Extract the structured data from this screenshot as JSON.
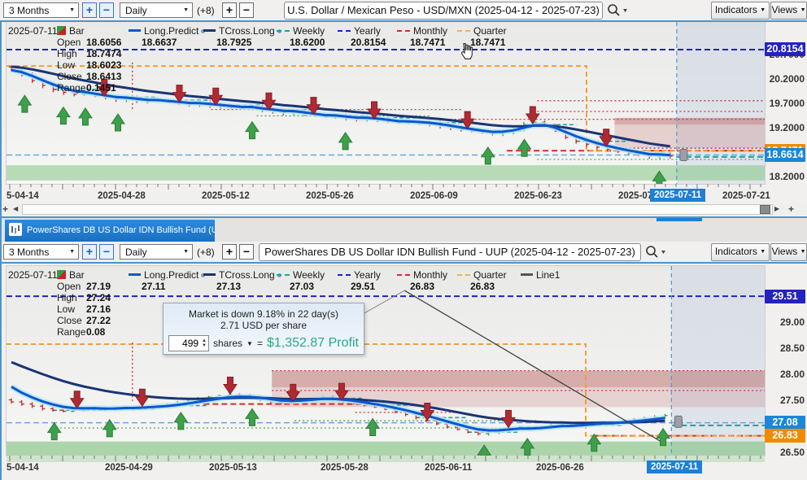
{
  "top_toolbar": {
    "range": "3 Months",
    "interval": "Daily",
    "plus8": "(+8)",
    "title": "U.S. Dollar / Mexican Peso - USD/MXN (2025-04-12 - 2025-07-23)",
    "indicators": "Indicators",
    "views": "Views"
  },
  "bottom_toolbar": {
    "range": "3 Months",
    "interval": "Daily",
    "plus8": "(+8)",
    "title": "PowerShares DB US Dollar IDN Bullish Fund - UUP (2025-04-12 - 2025-07-23)",
    "indicators": "Indicators",
    "views": "Views"
  },
  "tab": {
    "label": "PowerShares DB US Dollar IDN Bullish Fund (UUP)"
  },
  "top_panel": {
    "legend": {
      "date": "2025-07-11",
      "bar_label": "Bar",
      "items": [
        {
          "label": "Long.Predict",
          "value": "18.6637",
          "color": "#0b57d0",
          "style": "solid",
          "dot": true
        },
        {
          "label": "TCross.Long",
          "value": "18.7925",
          "color": "#1a3575",
          "style": "solid",
          "dot": true
        },
        {
          "label": "Weekly",
          "value": "18.6200",
          "color": "#1ba39c",
          "style": "dash",
          "dot": false
        },
        {
          "label": "Yearly",
          "value": "20.8154",
          "color": "#2222bb",
          "style": "dash",
          "dot": false
        },
        {
          "label": "Monthly",
          "value": "18.7471",
          "color": "#d82a2a",
          "style": "dash",
          "dot": false
        },
        {
          "label": "Quarter",
          "value": "18.7471",
          "color": "#e9b93c",
          "style": "dash",
          "dot": false
        }
      ],
      "ohlc": [
        {
          "k": "Open",
          "v": "18.6056"
        },
        {
          "k": "High",
          "v": "18.7474"
        },
        {
          "k": "Low",
          "v": "18.6023"
        },
        {
          "k": "Close",
          "v": "18.6413"
        },
        {
          "k": "Range",
          "v": "0.1451"
        }
      ]
    }
  },
  "bottom_panel": {
    "legend": {
      "date": "2025-07-11",
      "bar_label": "Bar",
      "items": [
        {
          "label": "Long.Predict",
          "value": "27.11",
          "color": "#0b57d0",
          "style": "solid",
          "dot": true
        },
        {
          "label": "TCross.Long",
          "value": "27.13",
          "color": "#1a3575",
          "style": "solid",
          "dot": true
        },
        {
          "label": "Weekly",
          "value": "27.03",
          "color": "#1ba39c",
          "style": "dash",
          "dot": false
        },
        {
          "label": "Yearly",
          "value": "29.51",
          "color": "#2222bb",
          "style": "dash",
          "dot": false
        },
        {
          "label": "Monthly",
          "value": "26.83",
          "color": "#d82a2a",
          "style": "dash",
          "dot": false
        },
        {
          "label": "Quarter",
          "value": "26.83",
          "color": "#e9b93c",
          "style": "dash",
          "dot": false
        },
        {
          "label": "Line1",
          "value": "",
          "color": "#555555",
          "style": "solid",
          "dot": false
        }
      ],
      "ohlc": [
        {
          "k": "Open",
          "v": "27.19"
        },
        {
          "k": "High",
          "v": "27.24"
        },
        {
          "k": "Low",
          "v": "27.16"
        },
        {
          "k": "Close",
          "v": "27.22"
        },
        {
          "k": "Range",
          "v": "0.08"
        }
      ]
    },
    "tooltip": {
      "line1": "Market is down 9.18% in 22 day(s)",
      "line2": "2.71 USD per share",
      "shares_value": "499",
      "shares_label": "shares",
      "equals": "=",
      "profit": "$1,352.87 Profit"
    }
  },
  "chart_data": [
    {
      "type": "ohlc",
      "symbol": "USD/MXN",
      "title": "U.S. Dollar / Mexican Peso - USD/MXN (2025-04-12 - 2025-07-23)",
      "y_range": [
        18.07,
        21.38
      ],
      "y_ticks": [
        {
          "t": "20.7000",
          "p": 20.7
        },
        {
          "t": "20.2000",
          "p": 20.2
        },
        {
          "t": "19.7000",
          "p": 19.7
        },
        {
          "t": "19.2000",
          "p": 19.2
        },
        {
          "t": "18.2000",
          "p": 18.2
        }
      ],
      "badges": [
        {
          "t": "20.8154",
          "p": 20.8154,
          "c": "#2323c0"
        },
        {
          "t": "18.7471",
          "p": 18.7471,
          "c": "#f08b00"
        },
        {
          "t": "18.6614",
          "p": 18.6614,
          "c": "#1a87d8"
        }
      ],
      "x_labels": [
        {
          "t": "5-04-14",
          "f": 0.005
        },
        {
          "t": "2025-04-28",
          "f": 0.157
        },
        {
          "t": "2025-05-12",
          "f": 0.294
        },
        {
          "t": "2025-05-26",
          "f": 0.431
        },
        {
          "t": "2025-06-09",
          "f": 0.569
        },
        {
          "t": "2025-06-23",
          "f": 0.706
        },
        {
          "t": "2025-07-07",
          "f": 0.843
        },
        {
          "t": "2025-07-21",
          "f": 0.981
        }
      ],
      "x_current": {
        "t": "2025-07-11",
        "f": 0.882
      },
      "current_frac": 0.884,
      "closes": [
        20.38,
        20.3,
        20.18,
        20.08,
        20.0,
        19.94,
        19.9,
        19.92,
        19.87,
        19.84,
        19.8,
        19.82,
        19.78,
        19.76,
        19.78,
        19.74,
        19.72,
        19.7,
        19.72,
        19.68,
        19.66,
        19.64,
        19.62,
        19.64,
        19.58,
        19.56,
        19.53,
        19.55,
        19.5,
        19.47,
        19.44,
        19.46,
        19.42,
        19.4,
        19.42,
        19.38,
        19.35,
        19.32,
        19.34,
        19.32,
        19.3,
        19.26,
        19.22,
        19.18,
        19.15,
        19.12,
        19.1,
        19.14,
        19.2,
        19.28,
        19.33,
        19.28,
        19.15,
        19.02,
        18.94,
        18.88,
        18.82,
        18.78,
        18.74,
        18.7,
        18.67,
        18.63,
        18.66,
        18.64
      ],
      "quarter_steps": [
        [
          0,
          20.48
        ],
        [
          0.765,
          20.48
        ],
        [
          0.765,
          18.747
        ],
        [
          1,
          18.747
        ]
      ],
      "h_lines": [
        {
          "p": 20.8154,
          "x1": 0,
          "x2": 1,
          "c": "#2222bb",
          "d": "dash",
          "w": 2
        },
        {
          "p": 18.6614,
          "x1": 0,
          "x2": 1,
          "c": "#66a8e0",
          "d": "dash",
          "w": 1.5
        },
        {
          "p": 18.747,
          "x1": 0.66,
          "x2": 1,
          "c": "#d82a2a",
          "d": "dash",
          "w": 2
        },
        {
          "p": 18.62,
          "x1": 0.884,
          "x2": 1,
          "c": "#1ba39c",
          "d": "dash",
          "w": 2
        },
        {
          "p": 19.77,
          "x1": 0.7,
          "x2": 1,
          "c": "#cc3344",
          "d": "dot",
          "w": 1.3
        },
        {
          "p": 19.55,
          "x1": 0.7,
          "x2": 1,
          "c": "#cc3344",
          "d": "dot",
          "w": 1.3
        },
        {
          "p": 19.39,
          "x1": 0.58,
          "x2": 1,
          "c": "#cc3344",
          "d": "dot",
          "w": 1.3
        },
        {
          "p": 19.59,
          "x1": 0.27,
          "x2": 0.6,
          "c": "#cc3344",
          "d": "dot",
          "w": 1.3
        },
        {
          "p": 19.46,
          "x1": 0.33,
          "x2": 0.56,
          "c": "#3d9e4a",
          "d": "dot",
          "w": 1.2
        },
        {
          "p": 18.57,
          "x1": 0.7,
          "x2": 1,
          "c": "#3d9e4a",
          "d": "dot",
          "w": 1.2
        },
        {
          "p": 18.8,
          "x1": 0.8,
          "x2": 1,
          "c": "#aa2233",
          "d": "dot",
          "w": 1.3
        }
      ],
      "v_lines": [
        {
          "x": 0.166,
          "p1": 20.55,
          "p2": 19.55,
          "c": "#e03030"
        }
      ],
      "zones": [
        {
          "x1": 0.802,
          "x2": 1,
          "p1": 19.42,
          "p2": 19.28,
          "c": "#b85c5c",
          "a": 0.45
        },
        {
          "x1": 0.802,
          "x2": 1,
          "p1": 19.28,
          "p2": 18.8,
          "c": "#c98080",
          "a": 0.3
        },
        {
          "x1": 0,
          "x2": 1,
          "p1": 18.45,
          "p2": 18.14,
          "c": "#8cc98c",
          "a": 0.6
        }
      ],
      "arrows": {
        "up": [
          0.024,
          0.075,
          0.104,
          0.147,
          0.324,
          0.447,
          0.635,
          0.683,
          0.861
        ],
        "down": [
          0.129,
          0.228,
          0.276,
          0.346,
          0.405,
          0.485,
          0.608,
          0.694,
          0.791
        ]
      },
      "ma": {
        "p_alpha": 0.45,
        "p_off": 0.03,
        "t_alpha": 0.13,
        "t_off": 0.1
      },
      "bar_amp": 0.05,
      "u_off": 0.3,
      "d_off": 0.02,
      "handle_p": 18.66
    },
    {
      "type": "ohlc",
      "symbol": "UUP",
      "title": "PowerShares DB US Dollar IDN Bullish Fund - UUP (2025-04-12 - 2025-07-23)",
      "y_range": [
        26.45,
        30.09
      ],
      "y_ticks": [
        {
          "t": "29.00",
          "p": 29.0
        },
        {
          "t": "28.50",
          "p": 28.5
        },
        {
          "t": "28.00",
          "p": 28.0
        },
        {
          "t": "27.50",
          "p": 27.5
        },
        {
          "t": "26.50",
          "p": 26.5
        }
      ],
      "badges": [
        {
          "t": "29.51",
          "p": 29.51,
          "c": "#2323c0"
        },
        {
          "t": "27.08",
          "p": 27.08,
          "c": "#1a87d8"
        },
        {
          "t": "26.83",
          "p": 26.83,
          "c": "#f08b00"
        }
      ],
      "x_labels": [
        {
          "t": "5-04-14",
          "f": 0.004
        },
        {
          "t": "2025-04-29",
          "f": 0.166
        },
        {
          "t": "2025-05-13",
          "f": 0.304
        },
        {
          "t": "2025-05-28",
          "f": 0.451
        },
        {
          "t": "2025-06-11",
          "f": 0.588
        },
        {
          "t": "2025-06-26",
          "f": 0.735
        }
      ],
      "x_current": {
        "t": "2025-07-11",
        "f": 0.878
      },
      "current_frac": 0.877,
      "closes": [
        27.48,
        27.44,
        27.4,
        27.35,
        27.32,
        27.3,
        27.32,
        27.35,
        27.36,
        27.34,
        27.36,
        27.38,
        27.37,
        27.39,
        27.41,
        27.43,
        27.46,
        27.5,
        27.54,
        27.57,
        27.6,
        27.62,
        27.6,
        27.57,
        27.53,
        27.49,
        27.46,
        27.48,
        27.52,
        27.55,
        27.57,
        27.54,
        27.5,
        27.46,
        27.42,
        27.38,
        27.34,
        27.29,
        27.24,
        27.18,
        27.12,
        27.06,
        27.0,
        26.95,
        26.9,
        26.87,
        26.9,
        26.94,
        26.98,
        27.0,
        26.97,
        27.0,
        27.03,
        27.05,
        27.03,
        27.06,
        27.08,
        27.1,
        27.08,
        27.12,
        27.14,
        27.16,
        27.19,
        27.22
      ],
      "quarter_steps": [
        [
          0,
          28.59
        ],
        [
          0.764,
          28.59
        ],
        [
          0.764,
          26.83
        ],
        [
          1,
          26.83
        ]
      ],
      "h_lines": [
        {
          "p": 29.51,
          "x1": 0,
          "x2": 1,
          "c": "#2222bb",
          "d": "dash",
          "w": 2
        },
        {
          "p": 27.08,
          "x1": 0,
          "x2": 1,
          "c": "#66a8e0",
          "d": "dash",
          "w": 1.5
        },
        {
          "p": 26.83,
          "x1": 0.775,
          "x2": 1,
          "c": "#d82a2a",
          "d": "dash",
          "w": 2
        },
        {
          "p": 27.03,
          "x1": 0.878,
          "x2": 1,
          "c": "#1ba39c",
          "d": "dash",
          "w": 2
        },
        {
          "p": 28.08,
          "x1": 0.35,
          "x2": 1,
          "c": "#cc3344",
          "d": "dot",
          "w": 1.3
        },
        {
          "p": 27.7,
          "x1": 0.35,
          "x2": 1,
          "c": "#cc3344",
          "d": "dot",
          "w": 1.3
        },
        {
          "p": 27.44,
          "x1": 0.26,
          "x2": 0.5,
          "c": "#d82a2a",
          "d": "dash",
          "w": 2
        },
        {
          "p": 27.28,
          "x1": 0.46,
          "x2": 0.6,
          "c": "#cc3344",
          "d": "dot",
          "w": 1.3
        },
        {
          "p": 26.98,
          "x1": 0.06,
          "x2": 0.72,
          "c": "#3d9e4a",
          "d": "dot",
          "w": 1.2
        },
        {
          "p": 27.12,
          "x1": 0.38,
          "x2": 0.7,
          "c": "#3d9e4a",
          "d": "dot",
          "w": 1.2
        }
      ],
      "v_lines": [
        {
          "x": 0.166,
          "p1": 28.62,
          "p2": 27.5,
          "c": "#e03030"
        }
      ],
      "zones": [
        {
          "x1": 0.35,
          "x2": 1,
          "p1": 28.08,
          "p2": 27.76,
          "c": "#b85c5c",
          "a": 0.45
        },
        {
          "x1": 0.35,
          "x2": 1,
          "p1": 27.76,
          "p2": 27.38,
          "c": "#c98080",
          "a": 0.28
        },
        {
          "x1": 0,
          "x2": 1,
          "p1": 26.72,
          "p2": 26.44,
          "c": "#86c386",
          "a": 0.65
        }
      ],
      "arrows": {
        "up": [
          0.063,
          0.136,
          0.23,
          0.324,
          0.483,
          0.63,
          0.687,
          0.775,
          0.866
        ],
        "down": [
          0.093,
          0.179,
          0.295,
          0.378,
          0.442,
          0.555,
          0.662
        ]
      },
      "line1": [
        [
          0.525,
          29.62
        ],
        [
          0.869,
          26.67
        ]
      ],
      "callout": [
        [
          0.47,
          29.17
        ],
        [
          0.525,
          29.62
        ]
      ],
      "ma": {
        "p_alpha": 0.35,
        "p_off": 0.45,
        "t_alpha": 0.1,
        "t_off": 0.85
      },
      "bar_amp": 0.032,
      "u_off": 0.22,
      "d_off": 0.01,
      "handle_p": 27.1
    }
  ]
}
